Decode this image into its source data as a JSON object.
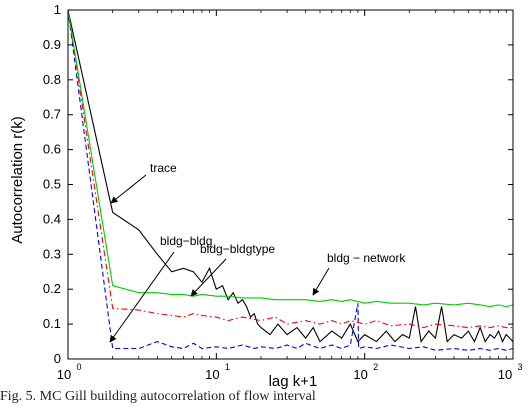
{
  "chart_data": {
    "type": "line",
    "title": "",
    "xlabel": "lag k+1",
    "ylabel": "Autocorrelation r(k)",
    "xscale": "log",
    "xlim": [
      1,
      1000
    ],
    "ylim": [
      0,
      1
    ],
    "grid": false,
    "x_ticks": [
      {
        "value": 1,
        "label": "10",
        "exp": "0"
      },
      {
        "value": 10,
        "label": "10",
        "exp": "1"
      },
      {
        "value": 100,
        "label": "10",
        "exp": "2"
      },
      {
        "value": 1000,
        "label": "10",
        "exp": "3"
      }
    ],
    "y_ticks": [
      {
        "value": 0,
        "label": "0"
      },
      {
        "value": 0.1,
        "label": "0.1"
      },
      {
        "value": 0.2,
        "label": "0.2"
      },
      {
        "value": 0.3,
        "label": "0.3"
      },
      {
        "value": 0.4,
        "label": "0.4"
      },
      {
        "value": 0.5,
        "label": "0.5"
      },
      {
        "value": 0.6,
        "label": "0.6"
      },
      {
        "value": 0.7,
        "label": "0.7"
      },
      {
        "value": 0.8,
        "label": "0.8"
      },
      {
        "value": 0.9,
        "label": "0.9"
      },
      {
        "value": 1,
        "label": "1"
      }
    ],
    "series": [
      {
        "name": "trace",
        "color": "#000000",
        "style": "solid",
        "points": [
          [
            1,
            1.0
          ],
          [
            2,
            0.42
          ],
          [
            3,
            0.37
          ],
          [
            4,
            0.3
          ],
          [
            5,
            0.25
          ],
          [
            6,
            0.26
          ],
          [
            7,
            0.25
          ],
          [
            8,
            0.22
          ],
          [
            9,
            0.26
          ],
          [
            10,
            0.2
          ],
          [
            11,
            0.21
          ],
          [
            12,
            0.17
          ],
          [
            13,
            0.19
          ],
          [
            14,
            0.16
          ],
          [
            15,
            0.17
          ],
          [
            16,
            0.15
          ],
          [
            17,
            0.12
          ],
          [
            18,
            0.13
          ],
          [
            19,
            0.1
          ],
          [
            20,
            0.09
          ],
          [
            23,
            0.07
          ],
          [
            26,
            0.1
          ],
          [
            30,
            0.07
          ],
          [
            35,
            0.09
          ],
          [
            40,
            0.06
          ],
          [
            45,
            0.09
          ],
          [
            50,
            0.05
          ],
          [
            60,
            0.08
          ],
          [
            70,
            0.06
          ],
          [
            80,
            0.1
          ],
          [
            90,
            0.05
          ],
          [
            100,
            0.07
          ],
          [
            120,
            0.05
          ],
          [
            140,
            0.08
          ],
          [
            160,
            0.05
          ],
          [
            180,
            0.07
          ],
          [
            200,
            0.06
          ],
          [
            220,
            0.15
          ],
          [
            240,
            0.05
          ],
          [
            270,
            0.08
          ],
          [
            300,
            0.06
          ],
          [
            330,
            0.15
          ],
          [
            360,
            0.05
          ],
          [
            400,
            0.07
          ],
          [
            450,
            0.06
          ],
          [
            500,
            0.08
          ],
          [
            550,
            0.05
          ],
          [
            600,
            0.09
          ],
          [
            650,
            0.05
          ],
          [
            700,
            0.07
          ],
          [
            750,
            0.06
          ],
          [
            800,
            0.08
          ],
          [
            850,
            0.05
          ],
          [
            900,
            0.07
          ],
          [
            950,
            0.06
          ],
          [
            1000,
            0.05
          ]
        ]
      },
      {
        "name": "bldg-bldg",
        "color": "#0000ff",
        "style": "dashed",
        "points": [
          [
            1,
            1.0
          ],
          [
            2,
            0.03
          ],
          [
            3,
            0.03
          ],
          [
            4,
            0.05
          ],
          [
            5,
            0.035
          ],
          [
            6,
            0.03
          ],
          [
            7,
            0.045
          ],
          [
            8,
            0.03
          ],
          [
            10,
            0.035
          ],
          [
            12,
            0.03
          ],
          [
            15,
            0.04
          ],
          [
            18,
            0.03
          ],
          [
            20,
            0.035
          ],
          [
            25,
            0.03
          ],
          [
            30,
            0.04
          ],
          [
            35,
            0.03
          ],
          [
            40,
            0.045
          ],
          [
            50,
            0.03
          ],
          [
            60,
            0.04
          ],
          [
            70,
            0.03
          ],
          [
            80,
            0.04
          ],
          [
            90,
            0.16
          ],
          [
            91,
            0.03
          ],
          [
            100,
            0.035
          ],
          [
            120,
            0.03
          ],
          [
            150,
            0.04
          ],
          [
            200,
            0.03
          ],
          [
            250,
            0.035
          ],
          [
            300,
            0.025
          ],
          [
            400,
            0.03
          ],
          [
            500,
            0.025
          ],
          [
            600,
            0.03
          ],
          [
            700,
            0.025
          ],
          [
            800,
            0.03
          ],
          [
            900,
            0.025
          ],
          [
            1000,
            0.03
          ]
        ]
      },
      {
        "name": "bldg-bldgtype",
        "color": "#ff0000",
        "style": "dashdot",
        "points": [
          [
            1,
            1.0
          ],
          [
            2,
            0.145
          ],
          [
            3,
            0.14
          ],
          [
            4,
            0.13
          ],
          [
            5,
            0.125
          ],
          [
            6,
            0.12
          ],
          [
            7,
            0.13
          ],
          [
            8,
            0.125
          ],
          [
            10,
            0.12
          ],
          [
            12,
            0.11
          ],
          [
            15,
            0.12
          ],
          [
            20,
            0.11
          ],
          [
            25,
            0.12
          ],
          [
            30,
            0.1
          ],
          [
            40,
            0.11
          ],
          [
            50,
            0.1
          ],
          [
            60,
            0.11
          ],
          [
            70,
            0.1
          ],
          [
            80,
            0.11
          ],
          [
            100,
            0.1
          ],
          [
            120,
            0.11
          ],
          [
            150,
            0.095
          ],
          [
            200,
            0.1
          ],
          [
            250,
            0.09
          ],
          [
            300,
            0.1
          ],
          [
            400,
            0.095
          ],
          [
            500,
            0.09
          ],
          [
            600,
            0.095
          ],
          [
            700,
            0.09
          ],
          [
            800,
            0.095
          ],
          [
            900,
            0.09
          ],
          [
            1000,
            0.09
          ]
        ]
      },
      {
        "name": "bldg - network",
        "color": "#00cc00",
        "style": "solid",
        "points": [
          [
            1,
            1.0
          ],
          [
            2,
            0.21
          ],
          [
            3,
            0.19
          ],
          [
            4,
            0.19
          ],
          [
            5,
            0.185
          ],
          [
            6,
            0.185
          ],
          [
            7,
            0.18
          ],
          [
            8,
            0.185
          ],
          [
            10,
            0.18
          ],
          [
            12,
            0.18
          ],
          [
            15,
            0.175
          ],
          [
            20,
            0.175
          ],
          [
            25,
            0.17
          ],
          [
            30,
            0.17
          ],
          [
            40,
            0.17
          ],
          [
            50,
            0.165
          ],
          [
            60,
            0.17
          ],
          [
            70,
            0.165
          ],
          [
            80,
            0.17
          ],
          [
            100,
            0.16
          ],
          [
            120,
            0.165
          ],
          [
            150,
            0.16
          ],
          [
            200,
            0.16
          ],
          [
            250,
            0.155
          ],
          [
            300,
            0.16
          ],
          [
            400,
            0.155
          ],
          [
            500,
            0.16
          ],
          [
            600,
            0.155
          ],
          [
            700,
            0.15
          ],
          [
            800,
            0.155
          ],
          [
            900,
            0.15
          ],
          [
            1000,
            0.155
          ]
        ]
      }
    ],
    "annotations": [
      {
        "text": "trace",
        "arrow": true
      },
      {
        "text": "bldg−bldg",
        "arrow": true
      },
      {
        "text": "bldg−bldgtype",
        "arrow": true
      },
      {
        "text": "bldg − network",
        "arrow": true
      }
    ]
  },
  "caption": "Fig. 5.   MC Gill building autocorrelation of flow interval"
}
